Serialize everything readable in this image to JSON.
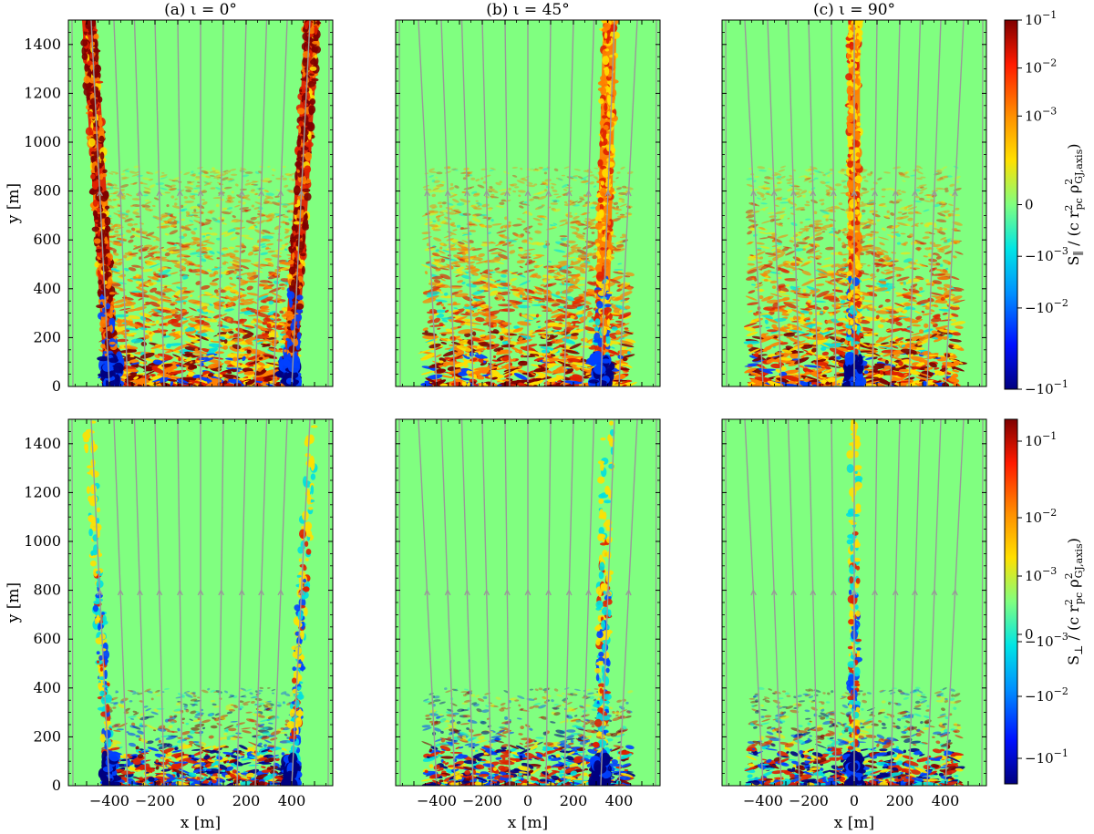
{
  "chart_data": [
    {
      "type": "heatmap",
      "title": "(a) ι = 0°",
      "quantity": "S_parallel",
      "xlabel": "",
      "ylabel": "y [m]",
      "xlim": [
        -580,
        580
      ],
      "ylim": [
        0,
        1500
      ],
      "xticks": [],
      "yticks": [
        "0",
        "200",
        "400",
        "600",
        "800",
        "1000",
        "1200",
        "1400"
      ],
      "background_value": 0,
      "bands": [
        {
          "x_center_bottom": -390,
          "x_center_top": -490,
          "width": 60,
          "level": "red"
        },
        {
          "x_center_bottom": 390,
          "x_center_top": 490,
          "width": 60,
          "level": "red"
        }
      ],
      "turbulent_region": {
        "x": [
          -420,
          420
        ],
        "y": [
          0,
          900
        ]
      }
    },
    {
      "type": "heatmap",
      "title": "(b) ι = 45°",
      "quantity": "S_parallel",
      "xlabel": "",
      "ylabel": "",
      "xlim": [
        -580,
        580
      ],
      "ylim": [
        0,
        1500
      ],
      "xticks": [],
      "yticks": [],
      "background_value": 0,
      "bands": [
        {
          "x_center_bottom": 320,
          "x_center_top": 360,
          "width": 60,
          "level": "orange"
        }
      ],
      "turbulent_region": {
        "x": [
          -450,
          450
        ],
        "y": [
          0,
          900
        ]
      }
    },
    {
      "type": "heatmap",
      "title": "(c) ι = 90°",
      "quantity": "S_parallel",
      "xlabel": "",
      "ylabel": "",
      "xlim": [
        -580,
        580
      ],
      "ylim": [
        0,
        1500
      ],
      "xticks": [],
      "yticks": [],
      "background_value": 0,
      "bands": [
        {
          "x_center_bottom": 0,
          "x_center_top": 0,
          "width": 50,
          "level": "orange"
        }
      ],
      "turbulent_region": {
        "x": [
          -460,
          460
        ],
        "y": [
          0,
          900
        ]
      }
    },
    {
      "type": "heatmap",
      "title": "",
      "quantity": "S_perp",
      "xlabel": "x [m]",
      "ylabel": "y [m]",
      "xlim": [
        -580,
        580
      ],
      "ylim": [
        0,
        1500
      ],
      "xticks": [
        "−400",
        "−200",
        "0",
        "200",
        "400"
      ],
      "yticks": [
        "0",
        "200",
        "400",
        "600",
        "800",
        "1000",
        "1200",
        "1400"
      ],
      "background_value": 0,
      "bands": [
        {
          "x_center_bottom": -400,
          "x_center_top": -490,
          "width": 40,
          "level": "mixed"
        },
        {
          "x_center_bottom": 400,
          "x_center_top": 490,
          "width": 40,
          "level": "mixed"
        }
      ],
      "turbulent_region": {
        "x": [
          -420,
          420
        ],
        "y": [
          0,
          400
        ]
      }
    },
    {
      "type": "heatmap",
      "title": "",
      "quantity": "S_perp",
      "xlabel": "x [m]",
      "ylabel": "",
      "xlim": [
        -580,
        580
      ],
      "ylim": [
        0,
        1500
      ],
      "xticks": [
        "−400",
        "−200",
        "0",
        "200",
        "400"
      ],
      "yticks": [],
      "background_value": 0,
      "bands": [
        {
          "x_center_bottom": 320,
          "x_center_top": 350,
          "width": 50,
          "level": "mixed"
        }
      ],
      "turbulent_region": {
        "x": [
          -450,
          450
        ],
        "y": [
          0,
          400
        ]
      }
    },
    {
      "type": "heatmap",
      "title": "",
      "quantity": "S_perp",
      "xlabel": "x [m]",
      "ylabel": "",
      "xlim": [
        -580,
        580
      ],
      "ylim": [
        0,
        1500
      ],
      "xticks": [
        "−400",
        "−200",
        "0",
        "200",
        "400"
      ],
      "yticks": [],
      "background_value": 0,
      "bands": [
        {
          "x_center_bottom": 0,
          "x_center_top": 0,
          "width": 40,
          "level": "mixed"
        }
      ],
      "turbulent_region": {
        "x": [
          -460,
          460
        ],
        "y": [
          0,
          400
        ]
      }
    }
  ],
  "field_lines": {
    "x_at_top": [
      -480,
      -380,
      -290,
      -200,
      -100,
      0,
      100,
      200,
      290,
      380,
      480
    ],
    "x_at_bottom": [
      -400,
      -320,
      -240,
      -160,
      -80,
      0,
      80,
      160,
      240,
      320,
      400
    ],
    "arrow_y": 800,
    "color": "#999999"
  },
  "colorbars": [
    {
      "label_main": "S",
      "label_sub": "∥",
      "label_rest": " / (c r",
      "label_pc": "pc",
      "label_mid": " ρ",
      "label_gj": "GJ,axis",
      "label_end": ")",
      "label_sup": "2",
      "ticks": [
        "10",
        "10",
        "10",
        "0",
        "−10",
        "−10",
        "−10"
      ],
      "exponents": [
        "−1",
        "−2",
        "−3",
        "",
        "−3",
        "−2",
        "−1"
      ],
      "scale": "symlog"
    },
    {
      "label_main": "S",
      "label_sub": "⊥",
      "label_rest": " / (c r",
      "label_pc": "pc",
      "label_mid": " ρ",
      "label_gj": "GJ,axis",
      "label_end": ")",
      "label_sup": "2",
      "ticks": [
        "10",
        "10",
        "10",
        "0",
        "−10",
        "−10",
        "−10"
      ],
      "exponents": [
        "−1",
        "−2",
        "−3",
        "",
        "−3",
        "−2",
        "−1"
      ],
      "scale": "symlog"
    }
  ],
  "colors": {
    "background": "#80ff80",
    "deep_red": "#800000",
    "red": "#e02000",
    "orange": "#ff8000",
    "yellow": "#ffe000",
    "cyan": "#00e0e0",
    "blue": "#0040ff",
    "navy": "#00007f",
    "field_line": "#999999"
  }
}
